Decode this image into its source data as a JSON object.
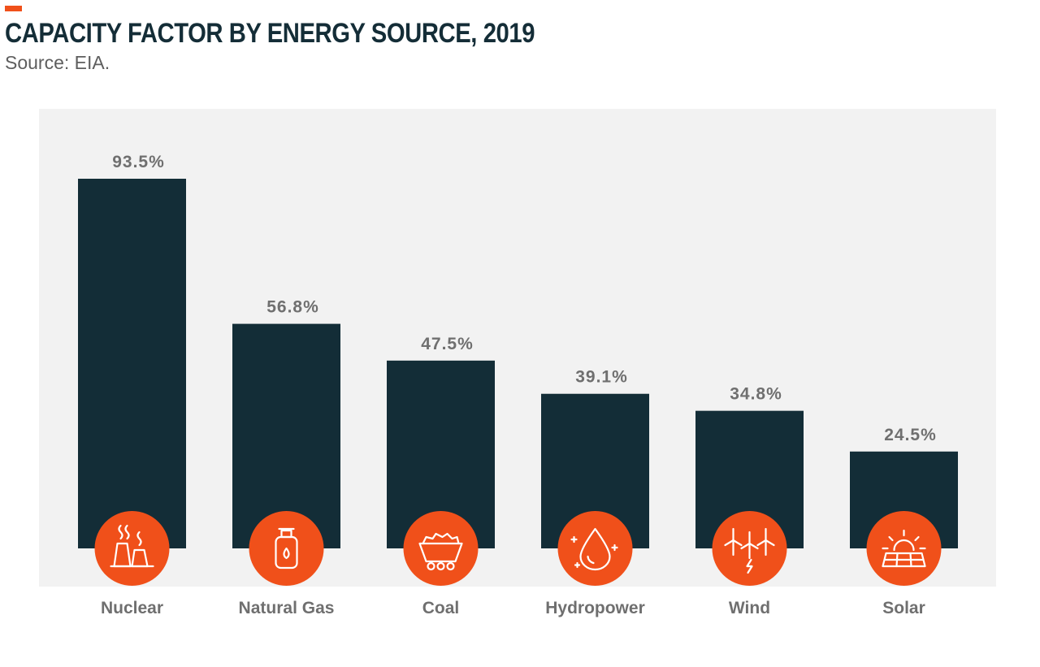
{
  "header": {
    "title": "CAPACITY FACTOR BY ENERGY SOURCE, 2019",
    "subtitle": "Source: EIA."
  },
  "colors": {
    "accent": "#f0501a",
    "bar": "#132d37",
    "panel": "#f2f2f2",
    "label": "#6f6f6f",
    "title": "#142d37"
  },
  "chart_data": {
    "type": "bar",
    "title": "CAPACITY FACTOR BY ENERGY SOURCE, 2019",
    "subtitle": "Source: EIA.",
    "categories": [
      "Nuclear",
      "Natural Gas",
      "Coal",
      "Hydropower",
      "Wind",
      "Solar"
    ],
    "values": [
      93.5,
      56.8,
      47.5,
      39.1,
      34.8,
      24.5
    ],
    "value_labels": [
      "93.5%",
      "56.8%",
      "47.5%",
      "39.1%",
      "34.8%",
      "24.5%"
    ],
    "icons": [
      "nuclear-plant-icon",
      "gas-cylinder-icon",
      "coal-cart-icon",
      "water-drop-icon",
      "wind-turbine-icon",
      "solar-panel-icon"
    ],
    "xlabel": "",
    "ylabel": "",
    "grid": false,
    "legend": "none"
  }
}
